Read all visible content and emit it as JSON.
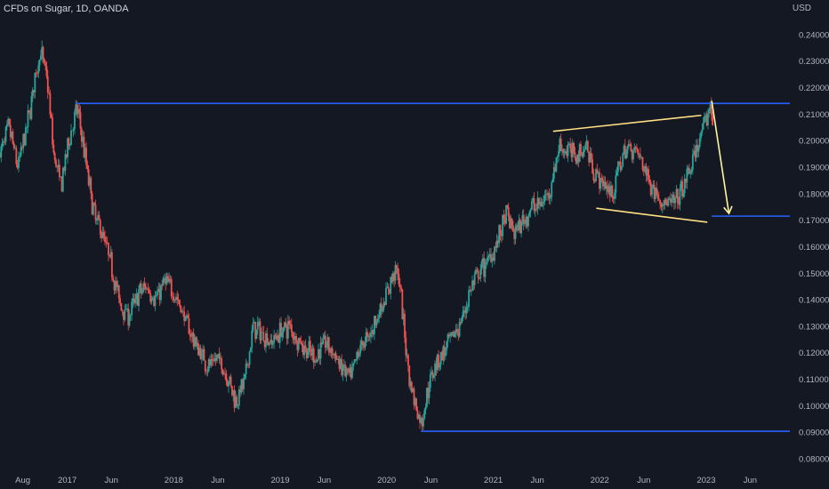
{
  "header": {
    "title": "CFDs on Sugar, 1D, OANDA",
    "unit": "USD"
  },
  "colors": {
    "background": "#141823",
    "up": "#26a69a",
    "down": "#ef5350",
    "level_line": "#2962ff",
    "trendline": "#ffe082",
    "arrow": "#fff59d",
    "axis_text": "#b2b5be"
  },
  "chart_data": {
    "type": "candlestick",
    "title": "CFDs on Sugar, 1D, OANDA",
    "ylabel": "USD",
    "y_ticks": [
      "0.24000",
      "0.23000",
      "0.22000",
      "0.21000",
      "0.20000",
      "0.19000",
      "0.18000",
      "0.17000",
      "0.16000",
      "0.15000",
      "0.14000",
      "0.13000",
      "0.12000",
      "0.11000",
      "0.10000",
      "0.09000",
      "0.08000"
    ],
    "ylim": [
      0.076,
      0.253
    ],
    "x_ticks": [
      {
        "label": "Aug",
        "date": "2016-08-01"
      },
      {
        "label": "2017",
        "date": "2017-01-01"
      },
      {
        "label": "Jun",
        "date": "2017-06-01"
      },
      {
        "label": "2018",
        "date": "2018-01-01"
      },
      {
        "label": "Jun",
        "date": "2018-06-01"
      },
      {
        "label": "2019",
        "date": "2019-01-01"
      },
      {
        "label": "Jun",
        "date": "2019-06-01"
      },
      {
        "label": "2020",
        "date": "2020-01-01"
      },
      {
        "label": "Jun",
        "date": "2020-06-01"
      },
      {
        "label": "2021",
        "date": "2021-01-01"
      },
      {
        "label": "Jun",
        "date": "2021-06-01"
      },
      {
        "label": "2022",
        "date": "2022-01-01"
      },
      {
        "label": "Jun",
        "date": "2022-06-01"
      },
      {
        "label": "2023",
        "date": "2023-01-01"
      },
      {
        "label": "Jun",
        "date": "2023-06-01"
      }
    ],
    "xlim": [
      "2016-05-15",
      "2023-10-15"
    ],
    "price_path": [
      [
        "2016-05-15",
        0.195
      ],
      [
        "2016-06-15",
        0.205
      ],
      [
        "2016-07-15",
        0.19
      ],
      [
        "2016-08-15",
        0.205
      ],
      [
        "2016-09-15",
        0.225
      ],
      [
        "2016-10-01",
        0.234
      ],
      [
        "2016-10-25",
        0.222
      ],
      [
        "2016-11-15",
        0.195
      ],
      [
        "2016-12-10",
        0.183
      ],
      [
        "2017-01-10",
        0.202
      ],
      [
        "2017-02-05",
        0.212
      ],
      [
        "2017-03-01",
        0.195
      ],
      [
        "2017-04-01",
        0.173
      ],
      [
        "2017-05-01",
        0.165
      ],
      [
        "2017-06-01",
        0.153
      ],
      [
        "2017-07-01",
        0.138
      ],
      [
        "2017-08-01",
        0.134
      ],
      [
        "2017-09-01",
        0.142
      ],
      [
        "2017-10-01",
        0.145
      ],
      [
        "2017-11-01",
        0.14
      ],
      [
        "2017-12-01",
        0.147
      ],
      [
        "2018-01-01",
        0.143
      ],
      [
        "2018-02-01",
        0.135
      ],
      [
        "2018-03-01",
        0.127
      ],
      [
        "2018-04-01",
        0.12
      ],
      [
        "2018-05-01",
        0.115
      ],
      [
        "2018-06-01",
        0.118
      ],
      [
        "2018-07-01",
        0.112
      ],
      [
        "2018-08-01",
        0.102
      ],
      [
        "2018-09-01",
        0.109
      ],
      [
        "2018-10-01",
        0.13
      ],
      [
        "2018-11-01",
        0.127
      ],
      [
        "2018-12-01",
        0.124
      ],
      [
        "2019-01-01",
        0.128
      ],
      [
        "2019-02-01",
        0.13
      ],
      [
        "2019-03-01",
        0.125
      ],
      [
        "2019-04-01",
        0.121
      ],
      [
        "2019-05-01",
        0.118
      ],
      [
        "2019-06-01",
        0.124
      ],
      [
        "2019-07-01",
        0.12
      ],
      [
        "2019-08-01",
        0.114
      ],
      [
        "2019-09-01",
        0.11
      ],
      [
        "2019-10-01",
        0.122
      ],
      [
        "2019-11-01",
        0.126
      ],
      [
        "2019-12-01",
        0.134
      ],
      [
        "2020-01-01",
        0.142
      ],
      [
        "2020-02-01",
        0.152
      ],
      [
        "2020-02-15",
        0.146
      ],
      [
        "2020-03-01",
        0.128
      ],
      [
        "2020-03-20",
        0.11
      ],
      [
        "2020-04-10",
        0.1
      ],
      [
        "2020-04-28",
        0.093
      ],
      [
        "2020-05-20",
        0.105
      ],
      [
        "2020-06-15",
        0.116
      ],
      [
        "2020-07-15",
        0.12
      ],
      [
        "2020-08-15",
        0.126
      ],
      [
        "2020-09-15",
        0.132
      ],
      [
        "2020-10-15",
        0.144
      ],
      [
        "2020-11-15",
        0.15
      ],
      [
        "2020-12-15",
        0.155
      ],
      [
        "2021-01-15",
        0.162
      ],
      [
        "2021-02-15",
        0.172
      ],
      [
        "2021-03-15",
        0.165
      ],
      [
        "2021-04-15",
        0.17
      ],
      [
        "2021-05-15",
        0.175
      ],
      [
        "2021-06-15",
        0.176
      ],
      [
        "2021-07-15",
        0.182
      ],
      [
        "2021-08-15",
        0.198
      ],
      [
        "2021-09-15",
        0.196
      ],
      [
        "2021-10-15",
        0.195
      ],
      [
        "2021-11-15",
        0.198
      ],
      [
        "2021-12-15",
        0.188
      ],
      [
        "2022-01-15",
        0.183
      ],
      [
        "2022-02-15",
        0.18
      ],
      [
        "2022-03-15",
        0.193
      ],
      [
        "2022-04-15",
        0.198
      ],
      [
        "2022-05-15",
        0.195
      ],
      [
        "2022-06-15",
        0.186
      ],
      [
        "2022-07-15",
        0.18
      ],
      [
        "2022-08-15",
        0.176
      ],
      [
        "2022-09-15",
        0.176
      ],
      [
        "2022-10-15",
        0.182
      ],
      [
        "2022-11-15",
        0.192
      ],
      [
        "2022-12-15",
        0.202
      ],
      [
        "2023-01-05",
        0.208
      ],
      [
        "2023-01-15",
        0.214
      ],
      [
        "2023-01-25",
        0.206
      ]
    ],
    "horizontal_levels": [
      {
        "price": 0.214,
        "from": "2017-02-01",
        "to": "2023-10-15"
      },
      {
        "price": 0.1715,
        "from": "2023-01-20",
        "to": "2023-10-15"
      },
      {
        "price": 0.0904,
        "from": "2020-04-28",
        "to": "2023-10-15"
      }
    ],
    "trendlines": [
      {
        "from": [
          "2021-07-25",
          0.2035
        ],
        "to": [
          "2022-12-15",
          0.2095
        ]
      },
      {
        "from": [
          "2021-12-20",
          0.1745
        ],
        "to": [
          "2023-01-05",
          0.1692
        ]
      }
    ],
    "arrow": {
      "from": [
        "2023-01-20",
        0.215
      ],
      "to": [
        "2023-03-20",
        0.1725
      ]
    }
  }
}
